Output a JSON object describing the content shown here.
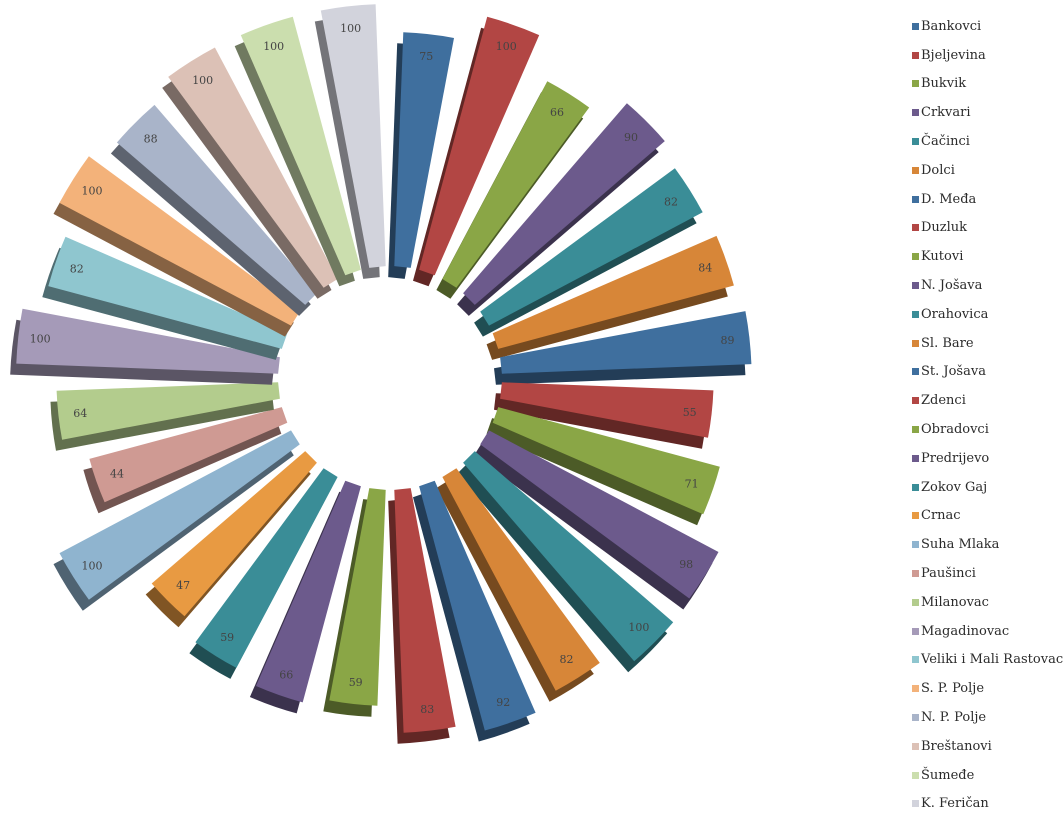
{
  "chart_data": {
    "type": "pie",
    "variant": "exploded-3d",
    "title": "",
    "categories": [
      "Bankovci",
      "Bjeljevina",
      "Bukvik",
      "Crkvari",
      "Čačinci",
      "Dolci",
      "D. Međa",
      "Duzluk",
      "Kutovi",
      "N. Jošava",
      "Orahovica",
      "Sl. Bare",
      "St. Jošava",
      "Zdenci",
      "Obradovci",
      "Pređrijevo",
      "Zokov Gaj",
      "Crnac",
      "Suha Mlaka",
      "Paušinci",
      "Milanovac",
      "Magadinovac",
      "Veliki i Mali Rastovac",
      "S. P. Polje",
      "N. P. Polje",
      "Breštanovi",
      "Šumeđe",
      "K. Feričan"
    ],
    "values": [
      75,
      100,
      66,
      90,
      82,
      84,
      89,
      55,
      71,
      98,
      100,
      82,
      92,
      83,
      59,
      66,
      59,
      47,
      100,
      44,
      64,
      100,
      82,
      100,
      88,
      100,
      100,
      100
    ],
    "colors": [
      "#3f6f9e",
      "#b24644",
      "#8aa646",
      "#6c5a8c",
      "#3a8d97",
      "#d78638",
      "#3f6f9e",
      "#b24644",
      "#8aa646",
      "#6c5a8c",
      "#3a8d97",
      "#d78638",
      "#3f6f9e",
      "#b24644",
      "#8aa646",
      "#6c5a8c",
      "#3a8d97",
      "#e89a42",
      "#8fb4cf",
      "#cf9a93",
      "#b3cc8d",
      "#a59ab8",
      "#8fc6cf",
      "#f3b27a",
      "#a9b4c9",
      "#dcc1b6",
      "#cbdeae",
      "#d2d3dc"
    ],
    "legend": {
      "position": "right",
      "labels": [
        "Bankovci",
        "Bjeljevina",
        "Bukvik",
        "Crkvari",
        "Čačinci",
        "Dolci",
        "D. Međa",
        "Duzluk",
        "Kutovi",
        "N. Jošava",
        "Orahovica",
        "Sl. Bare",
        "St. Jošava",
        "Zdenci",
        "Obradovci",
        "Predrijevo",
        "Zokov Gaj",
        "Crnac",
        "Suha Mlaka",
        "Paušinci",
        "Milanovac",
        "Magadinovac",
        "Veliki i Mali Rastovac",
        "S. P. Polje",
        "N. P. Polje",
        "Breštanovi",
        "Šumeđe",
        "K. Feričan"
      ]
    }
  }
}
